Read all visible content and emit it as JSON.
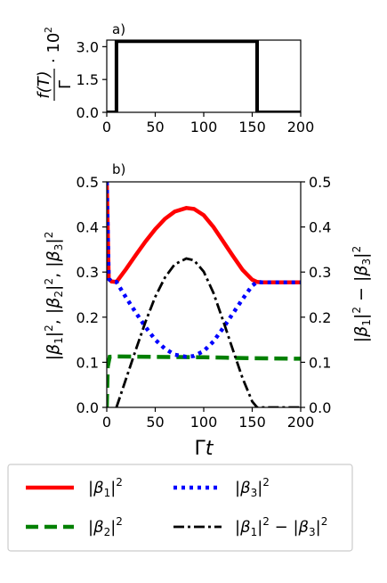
{
  "chart_data": [
    {
      "panel_label": "a)",
      "type": "line",
      "ylabel": "f(T)/Γ · 10²",
      "xlim": [
        0,
        200
      ],
      "ylim": [
        0,
        3.3
      ],
      "x_ticks": [
        "0",
        "50",
        "100",
        "150",
        "200"
      ],
      "y_ticks": [
        "0.0",
        "1.5",
        "3.0"
      ],
      "x_tick_values": [
        0,
        50,
        100,
        150,
        200
      ],
      "y_tick_values": [
        0.0,
        1.5,
        3.0
      ],
      "series": [
        {
          "color": "#000000",
          "x": [
            0,
            10,
            10,
            155,
            155,
            200
          ],
          "y": [
            0,
            0,
            3.25,
            3.25,
            0,
            0
          ]
        }
      ]
    },
    {
      "panel_label": "b)",
      "type": "line",
      "xlabel": "Γt",
      "ylabel_left": "|β₁|², |β₂|², |β₃|²",
      "ylabel_right": "|β₁|² − |β₃|²",
      "xlim": [
        0,
        200
      ],
      "ylim": [
        0,
        0.5
      ],
      "x_ticks": [
        "0",
        "50",
        "100",
        "150",
        "200"
      ],
      "y_ticks_left": [
        "0.0",
        "0.1",
        "0.2",
        "0.3",
        "0.4",
        "0.5"
      ],
      "y_ticks_right": [
        "0.0",
        "0.1",
        "0.2",
        "0.3",
        "0.4",
        "0.5"
      ],
      "x_tick_values": [
        0,
        50,
        100,
        150,
        200
      ],
      "y_tick_values": [
        0.0,
        0.1,
        0.2,
        0.3,
        0.4,
        0.5
      ],
      "series": [
        {
          "name": "|β₁|²",
          "color": "#ff0000",
          "style": "solid",
          "x": [
            0,
            2,
            5,
            10,
            20,
            30,
            40,
            50,
            60,
            70,
            82,
            90,
            100,
            110,
            120,
            130,
            140,
            150,
            155,
            160,
            200
          ],
          "y": [
            0.5,
            0.285,
            0.279,
            0.278,
            0.307,
            0.338,
            0.368,
            0.395,
            0.418,
            0.434,
            0.442,
            0.44,
            0.426,
            0.4,
            0.368,
            0.336,
            0.305,
            0.283,
            0.278,
            0.277,
            0.277
          ]
        },
        {
          "name": "|β₂|²",
          "color": "#008000",
          "style": "dashed",
          "x": [
            0,
            1,
            3,
            10,
            50,
            100,
            150,
            200
          ],
          "y": [
            0.0,
            0.09,
            0.112,
            0.113,
            0.112,
            0.111,
            0.109,
            0.108
          ]
        },
        {
          "name": "|β₃|²",
          "color": "#0000ff",
          "style": "dotted",
          "x": [
            0,
            2,
            5,
            10,
            20,
            30,
            40,
            50,
            60,
            70,
            82,
            90,
            100,
            110,
            120,
            130,
            140,
            150,
            155,
            160,
            200
          ],
          "y": [
            0.5,
            0.285,
            0.279,
            0.278,
            0.243,
            0.21,
            0.178,
            0.15,
            0.13,
            0.117,
            0.112,
            0.114,
            0.125,
            0.146,
            0.176,
            0.208,
            0.24,
            0.27,
            0.278,
            0.277,
            0.277
          ]
        },
        {
          "name": "|β₁|² − |β₃|²",
          "color": "#000000",
          "style": "dashdot",
          "x": [
            10,
            20,
            30,
            40,
            50,
            60,
            70,
            82,
            90,
            100,
            110,
            120,
            130,
            140,
            150,
            155,
            160,
            200
          ],
          "y": [
            0.0,
            0.064,
            0.128,
            0.19,
            0.245,
            0.288,
            0.317,
            0.33,
            0.326,
            0.301,
            0.254,
            0.192,
            0.128,
            0.065,
            0.013,
            0.0,
            0.0,
            0.0
          ]
        }
      ]
    }
  ]
}
